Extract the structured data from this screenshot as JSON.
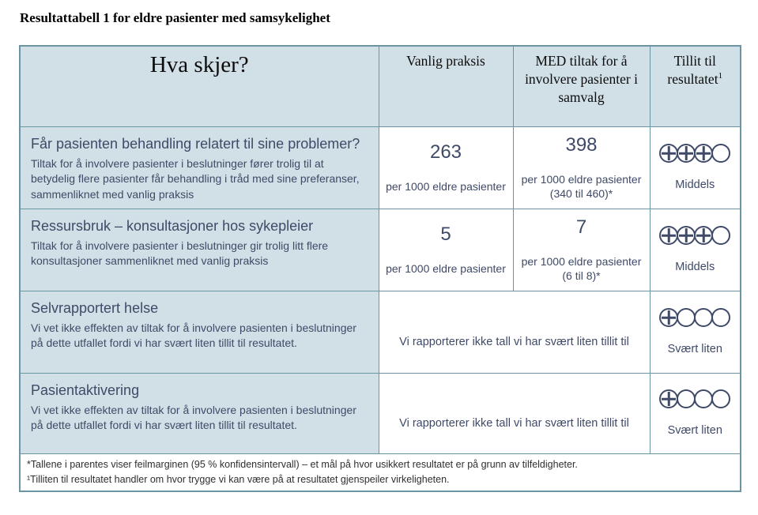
{
  "page_title": "Resultattabell 1 for eldre pasienter med samsykelighet",
  "colors": {
    "table_border": "#6b95a3",
    "header_and_outcome_bg": "#d1dfe6",
    "body_text_navy": "#3f4a68",
    "footnote_text": "#2f2f2f"
  },
  "table": {
    "headers": {
      "what": "Hva skjer?",
      "usual": "Vanlig praksis",
      "intervention": "MED tiltak for å involvere pasienter i samvalg",
      "confidence": "Tillit til resultatet",
      "confidence_sup": "1"
    },
    "rows": [
      {
        "title": "Får pasienten behandling relatert til sine problemer?",
        "description": "Tiltak for å involvere pasienter i beslutninger fører trolig til at betydelig flere pasienter får behandling i tråd med sine preferanser, sammenliknet med vanlig praksis",
        "usual_value": "263",
        "usual_unit": "per 1000 eldre pasienter",
        "intervention_value": "398",
        "intervention_unit": "per 1000 eldre pasienter",
        "intervention_ci": "(340 til 460)*",
        "grade_filled": 3,
        "grade_total": 4,
        "grade_label": "Middels"
      },
      {
        "title": "Ressursbruk – konsultasjoner hos sykepleier",
        "description": "Tiltak for å involvere pasienter i beslutninger gir trolig litt flere konsultasjoner sammenliknet med vanlig praksis",
        "usual_value": "5",
        "usual_unit": "per 1000 eldre pasienter",
        "intervention_value": "7",
        "intervention_unit": "per 1000 eldre pasienter",
        "intervention_ci": "(6 til 8)*",
        "grade_filled": 3,
        "grade_total": 4,
        "grade_label": "Middels"
      },
      {
        "title": "Selvrapportert helse",
        "description": "Vi vet ikke effekten av tiltak for å involvere pasienten i beslutninger på dette utfallet fordi vi har svært liten tillit til resultatet.",
        "merged_text": "Vi rapporterer ikke tall vi har svært liten tillit til",
        "grade_filled": 1,
        "grade_total": 4,
        "grade_label": "Svært liten"
      },
      {
        "title": "Pasientaktivering",
        "description": "Vi vet ikke effekten av tiltak for å involvere pasienten i beslutninger på dette utfallet fordi vi har svært liten tillit til resultatet.",
        "merged_text": "Vi rapporterer ikke tall vi har svært liten tillit til",
        "grade_filled": 1,
        "grade_total": 4,
        "grade_label": "Svært liten"
      }
    ],
    "footnotes": [
      "*Tallene i parentes viser feilmarginen (95 % konfidensintervall) – et mål på hvor usikkert resultatet er på grunn av tilfeldigheter.",
      "¹Tilliten til resultatet handler om hvor trygge vi kan være på at resultatet gjenspeiler virkeligheten."
    ]
  }
}
